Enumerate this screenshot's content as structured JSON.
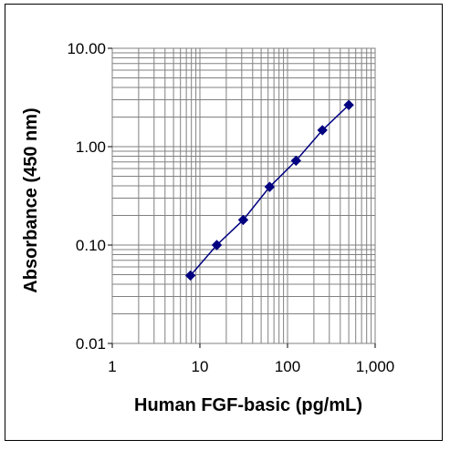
{
  "chart_data": {
    "type": "line",
    "xlabel": "Human FGF-basic (pg/mL)",
    "ylabel": "Absorbance (450 nm)",
    "x_scale": "log",
    "y_scale": "log",
    "xlim": [
      1,
      1000
    ],
    "ylim": [
      0.01,
      10
    ],
    "x_ticks": [
      "1",
      "10",
      "100",
      "1,000"
    ],
    "y_ticks": [
      "10.00",
      "1.00",
      "0.10",
      "0.01"
    ],
    "grid": true,
    "legend": "none",
    "series": [
      {
        "color": "#000080",
        "marker": "diamond",
        "x": [
          7.8,
          15.6,
          31.2,
          62.5,
          125,
          250,
          500
        ],
        "y": [
          0.049,
          0.1,
          0.18,
          0.39,
          0.72,
          1.47,
          2.65
        ]
      }
    ]
  }
}
